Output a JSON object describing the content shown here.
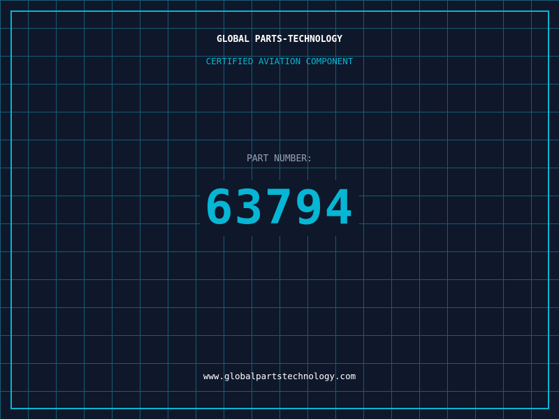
{
  "title": "GLOBAL PARTS-TECHNOLOGY",
  "subtitle": "CERTIFIED AVIATION COMPONENT",
  "part_label": "PART NUMBER:",
  "part_number": "63794",
  "website": "www.globalpartstechnology.com",
  "colors": {
    "background": "#0f172a",
    "accent": "#06b6d4",
    "grid": "#155e75"
  }
}
